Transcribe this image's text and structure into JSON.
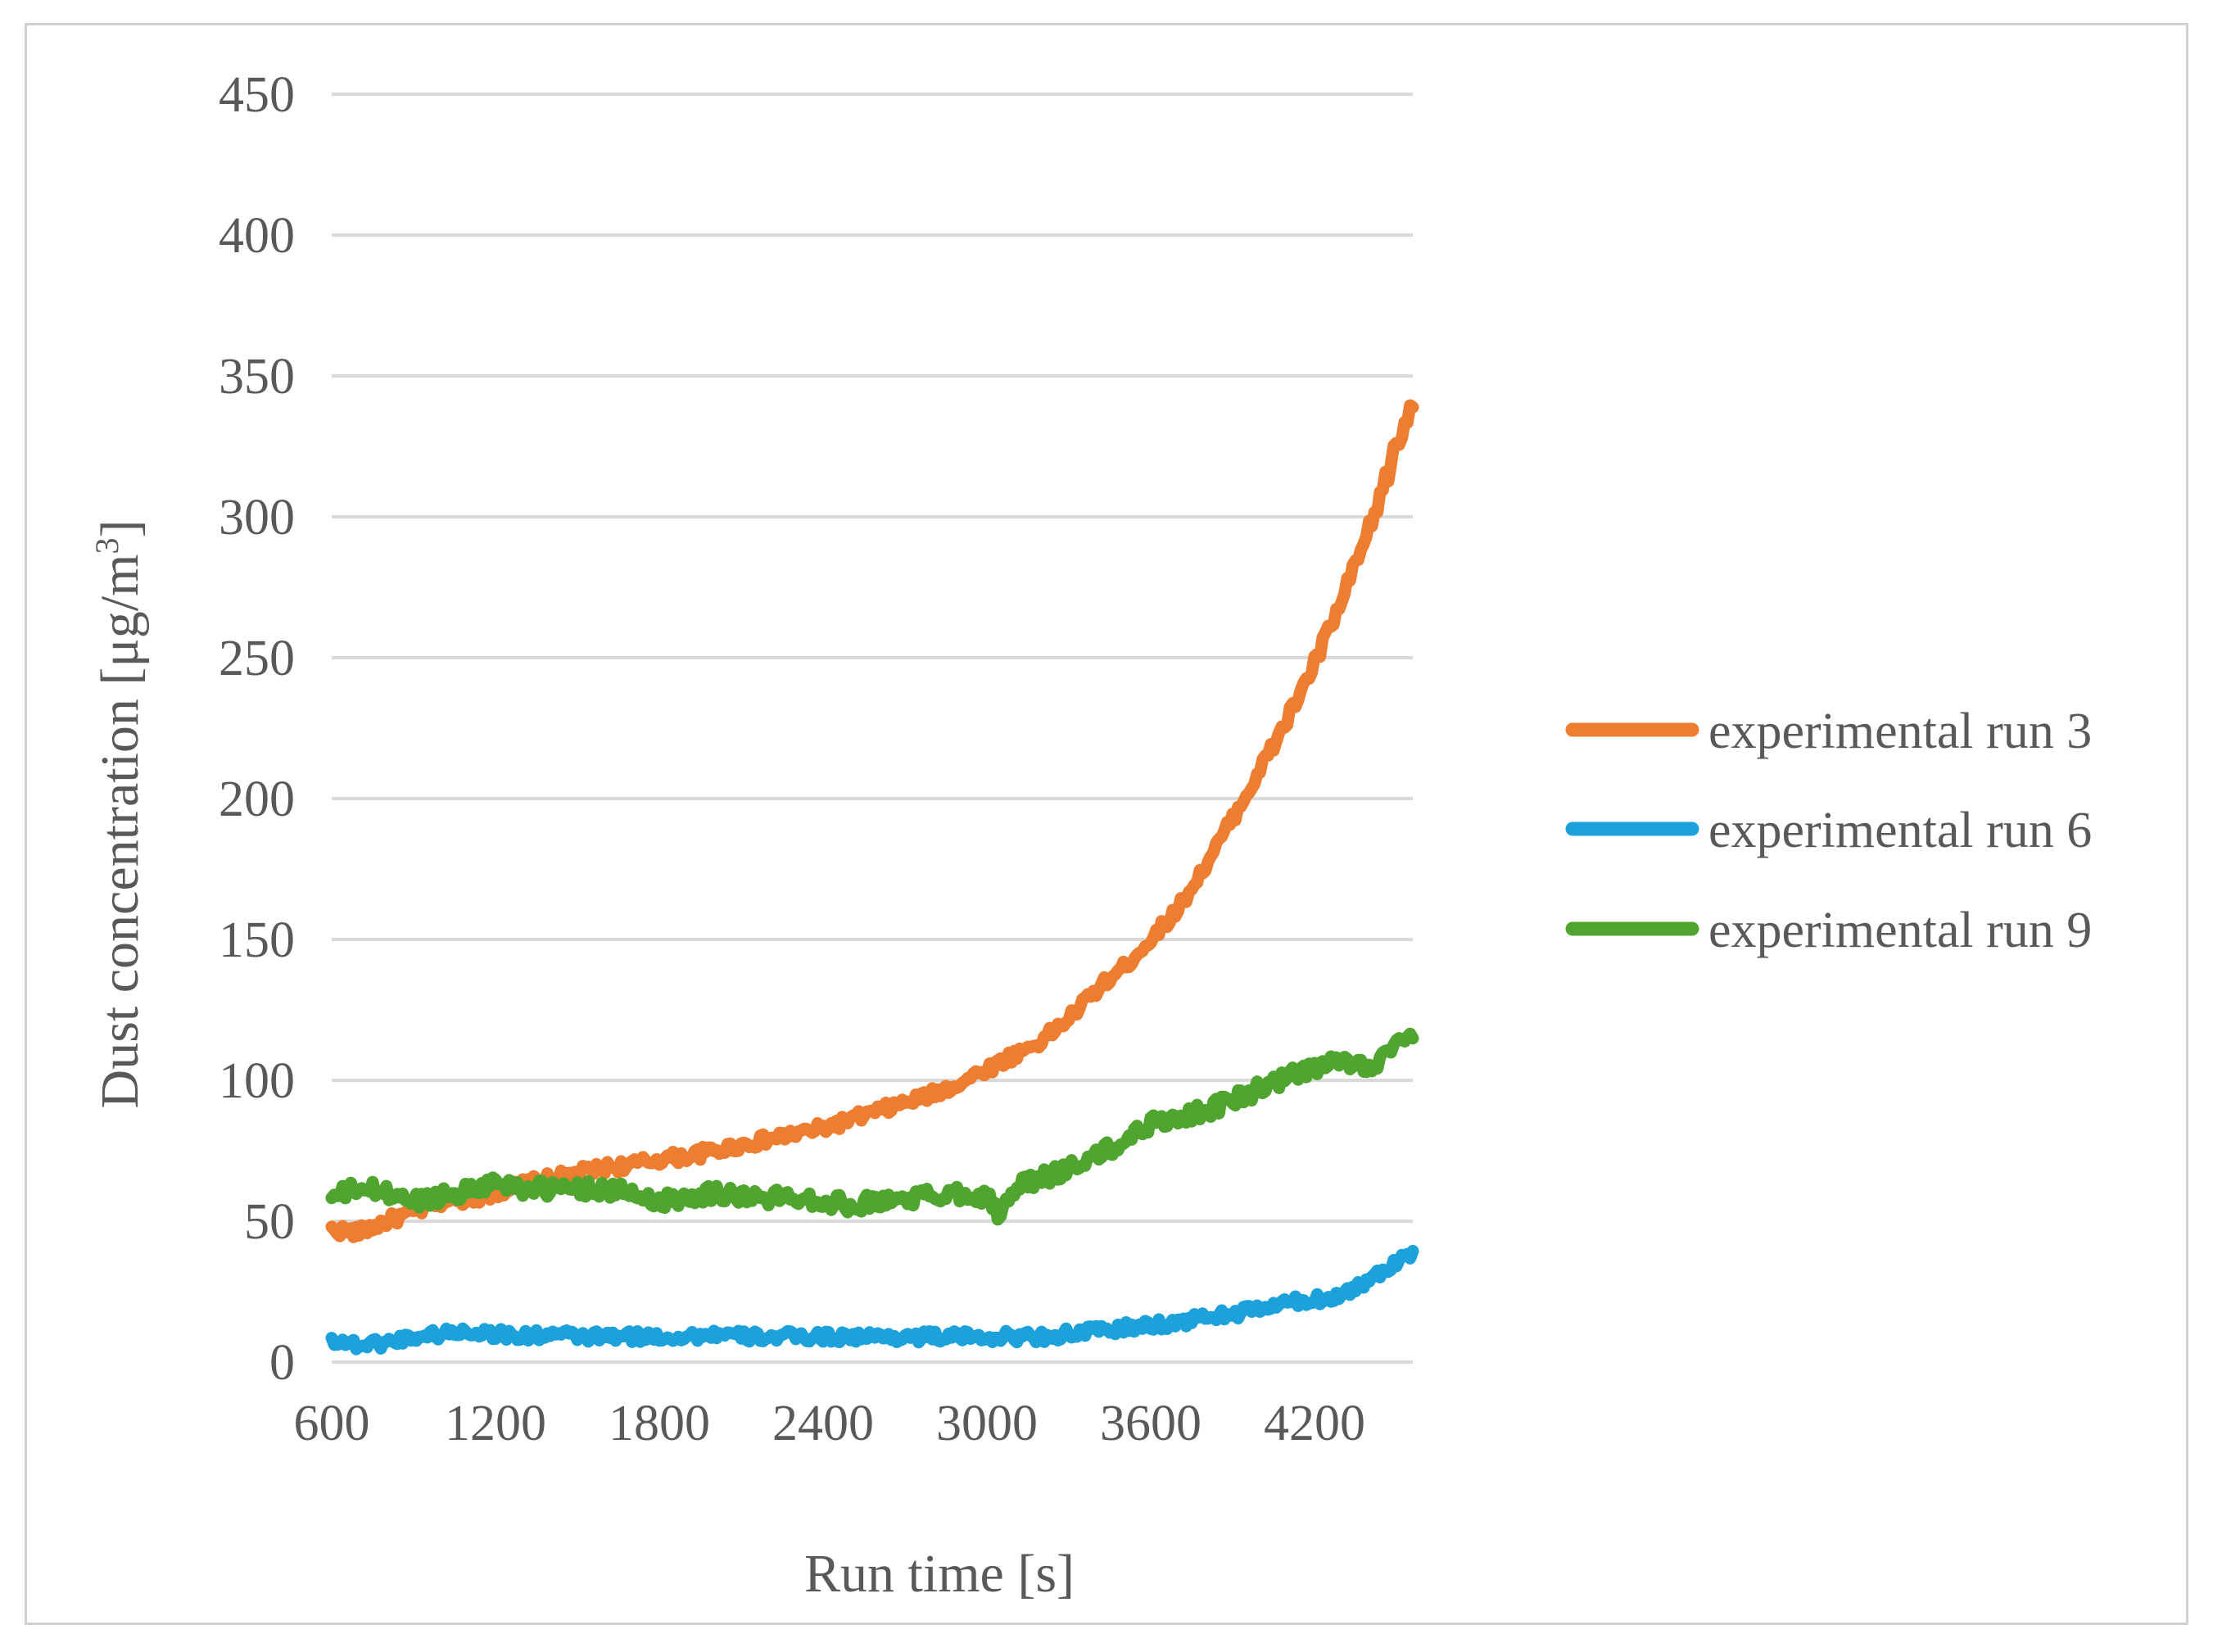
{
  "chart_data": {
    "type": "line",
    "title": "",
    "xlabel": "Run time [s]",
    "ylabel_main": "Dust concentration [μg/m",
    "ylabel_sup": "3",
    "ylabel_close": "]",
    "xlim": [
      600,
      4560
    ],
    "ylim": [
      0,
      450
    ],
    "x_ticks": [
      600,
      1200,
      1800,
      2400,
      3000,
      3600,
      4200
    ],
    "y_ticks": [
      0,
      50,
      100,
      150,
      200,
      250,
      300,
      350,
      400,
      450
    ],
    "x_tick_labels": [
      "600",
      "1200",
      "1800",
      "2400",
      "3000",
      "3600",
      "4200"
    ],
    "y_tick_labels": [
      "0",
      "50",
      "100",
      "150",
      "200",
      "250",
      "300",
      "350",
      "400",
      "450"
    ],
    "grid": "horizontal",
    "legend_position": "right",
    "series": [
      {
        "name": "experimental run 3",
        "color": "#ED7D31",
        "x": [
          600,
          700,
          800,
          900,
          1000,
          1100,
          1200,
          1300,
          1400,
          1500,
          1600,
          1700,
          1800,
          1900,
          2000,
          2100,
          2200,
          2300,
          2400,
          2500,
          2600,
          2700,
          2800,
          2900,
          3000,
          3100,
          3200,
          3300,
          3400,
          3500,
          3600,
          3700,
          3800,
          3900,
          4000,
          4100,
          4200,
          4300,
          4400,
          4500,
          4560
        ],
        "y": [
          47,
          46,
          50,
          53,
          57,
          58,
          60,
          63,
          65,
          67,
          69,
          70,
          72,
          73,
          75,
          77,
          79,
          81,
          83,
          86,
          89,
          92,
          95,
          99,
          104,
          109,
          114,
          122,
          132,
          140,
          150,
          161,
          176,
          193,
          210,
          228,
          248,
          270,
          295,
          325,
          340
        ]
      },
      {
        "name": "experimental run 6",
        "color": "#1CA1DB",
        "x": [
          600,
          700,
          800,
          900,
          1000,
          1100,
          1200,
          1300,
          1400,
          1500,
          1600,
          1700,
          1800,
          1900,
          2000,
          2100,
          2200,
          2300,
          2400,
          2500,
          2600,
          2700,
          2800,
          2900,
          3000,
          3100,
          3200,
          3300,
          3400,
          3500,
          3600,
          3700,
          3800,
          3900,
          4000,
          4100,
          4200,
          4300,
          4400,
          4500,
          4560
        ],
        "y": [
          8,
          6,
          7,
          9,
          10,
          11,
          10,
          9,
          10,
          9,
          9,
          9,
          9,
          9,
          10,
          9,
          9,
          9,
          9,
          9,
          9,
          9,
          9,
          9,
          9,
          9,
          9,
          10,
          11,
          12,
          13,
          14,
          16,
          17,
          19,
          21,
          22,
          24,
          29,
          36,
          40
        ]
      },
      {
        "name": "experimental run 9",
        "color": "#4FA52F",
        "x": [
          600,
          700,
          800,
          900,
          1000,
          1100,
          1200,
          1300,
          1400,
          1500,
          1600,
          1700,
          1800,
          1900,
          2000,
          2100,
          2200,
          2300,
          2400,
          2500,
          2600,
          2700,
          2800,
          2900,
          3000,
          3050,
          3100,
          3200,
          3300,
          3400,
          3500,
          3600,
          3700,
          3800,
          3900,
          4000,
          4100,
          4200,
          4300,
          4400,
          4500,
          4560
        ],
        "y": [
          58,
          62,
          60,
          57,
          59,
          61,
          64,
          62,
          61,
          62,
          61,
          60,
          57,
          59,
          60,
          59,
          58,
          59,
          57,
          56,
          57,
          58,
          59,
          60,
          59,
          51,
          62,
          65,
          69,
          73,
          78,
          85,
          87,
          89,
          93,
          97,
          101,
          104,
          107,
          105,
          112,
          115
        ]
      }
    ]
  }
}
